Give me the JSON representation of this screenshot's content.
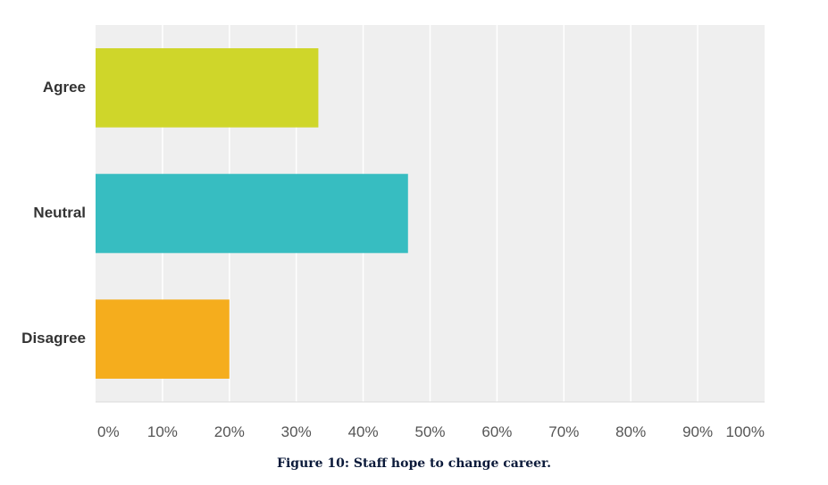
{
  "caption": "Figure 10: Staff hope to change career.",
  "colors": {
    "plot_background": "#efefef",
    "gridline": "#ffffff",
    "axis_line": "#d9d9d9"
  },
  "chart_data": {
    "type": "bar",
    "orientation": "horizontal",
    "categories": [
      "Agree",
      "Neutral",
      "Disagree"
    ],
    "values": [
      33.3,
      46.7,
      20.0
    ],
    "colors": [
      "#cfd62a",
      "#37bdc1",
      "#f5ad1d"
    ],
    "value_unit": "%",
    "xlim": [
      0,
      100
    ],
    "x_ticks": [
      "0%",
      "10%",
      "20%",
      "30%",
      "40%",
      "50%",
      "60%",
      "70%",
      "80%",
      "90%",
      "100%"
    ],
    "grid": true,
    "legend": false
  }
}
